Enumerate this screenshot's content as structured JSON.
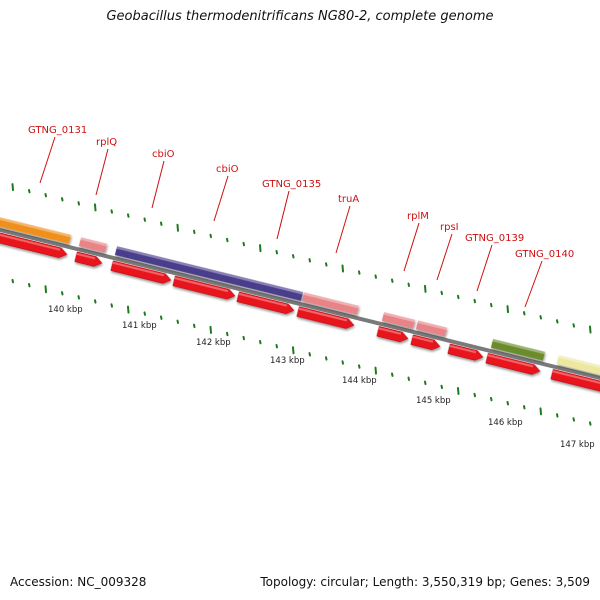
{
  "title": "Geobacillus thermodenitrificans NG80-2, complete genome",
  "footer": {
    "accession": "Accession: NC_009328",
    "summary": "Topology: circular; Length: 3,550,319 bp; Genes: 3,509"
  },
  "colors": {
    "cds": "#e8141c",
    "gene_orange": "#f0901a",
    "gene_pink": "#e88488",
    "gene_purple": "#4a3d8c",
    "gene_olive": "#6a8c2a",
    "gene_yellow": "#ece8a0",
    "label": "#cc1111",
    "tick": "#1e7a1e",
    "backbone": "#7a7a7a"
  },
  "scale_labels": [
    "140 kbp",
    "141 kbp",
    "142 kbp",
    "143 kbp",
    "144 kbp",
    "145 kbp",
    "146 kbp",
    "147 kbp"
  ],
  "gene_labels": [
    "GTNG_0131",
    "rplQ",
    "cbiO",
    "cbiO",
    "GTNG_0135",
    "truA",
    "rplM",
    "rpsI",
    "GTNG_0139",
    "GTNG_0140"
  ]
}
